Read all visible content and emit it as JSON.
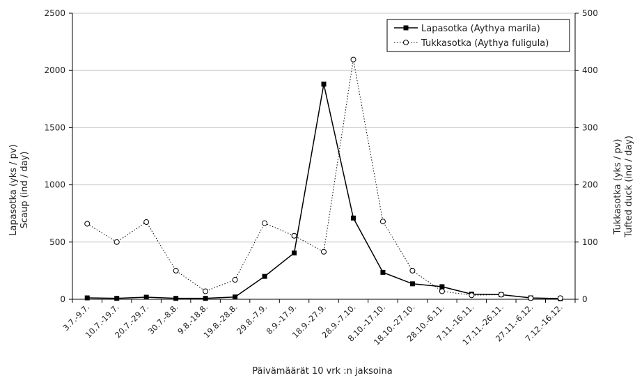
{
  "chart_data": {
    "type": "line",
    "xlabel": "Päivämäärät   10 vrk :n jaksoina",
    "ylabel_left": [
      "Lapasotka (yks / pv)",
      "Scaup (ind / day)"
    ],
    "ylabel_right": [
      "Tukkasotka (yks / pv)",
      "Tufted duck (ind / day)"
    ],
    "categories": [
      "3.7.-9.7.",
      "10.7.-19.7.",
      "20.7.-29.7.",
      "30.7.-8.8.",
      "9.8.-18.8.",
      "19.8.-28.8.",
      "29.8.-7.9.",
      "8.9.-17.9.",
      "18.9.-27.9.",
      "28.9.-7.10.",
      "8.10.-17.10.",
      "18.10.-27.10.",
      "28.10.-6.11.",
      "7.11.-16.11.",
      "17.11.-26.11.",
      "27.11.-6.12.",
      "7.12.-16.12."
    ],
    "ylim_left": [
      0,
      2500
    ],
    "yticks_left": [
      "0",
      "500",
      "1000",
      "1500",
      "2000",
      "2500"
    ],
    "ylim_right": [
      0,
      500
    ],
    "yticks_right": [
      "0",
      "100",
      "200",
      "300",
      "400",
      "500"
    ],
    "grid": true,
    "legend_position": "top-right",
    "series": [
      {
        "name": "Lapasotka (Aythya marila)",
        "axis": "left",
        "marker": "filled-square",
        "line": "solid",
        "values": [
          12,
          8,
          18,
          8,
          8,
          20,
          200,
          405,
          1880,
          710,
          235,
          135,
          110,
          45,
          40,
          12,
          5
        ]
      },
      {
        "name": "Tukkasotka (Aythya fuligula)",
        "axis": "right",
        "marker": "open-circle",
        "line": "dotted",
        "values": [
          132,
          100,
          135,
          50,
          14,
          34,
          133,
          111,
          83,
          419,
          136,
          50,
          14,
          7,
          8,
          2,
          2
        ]
      }
    ]
  }
}
